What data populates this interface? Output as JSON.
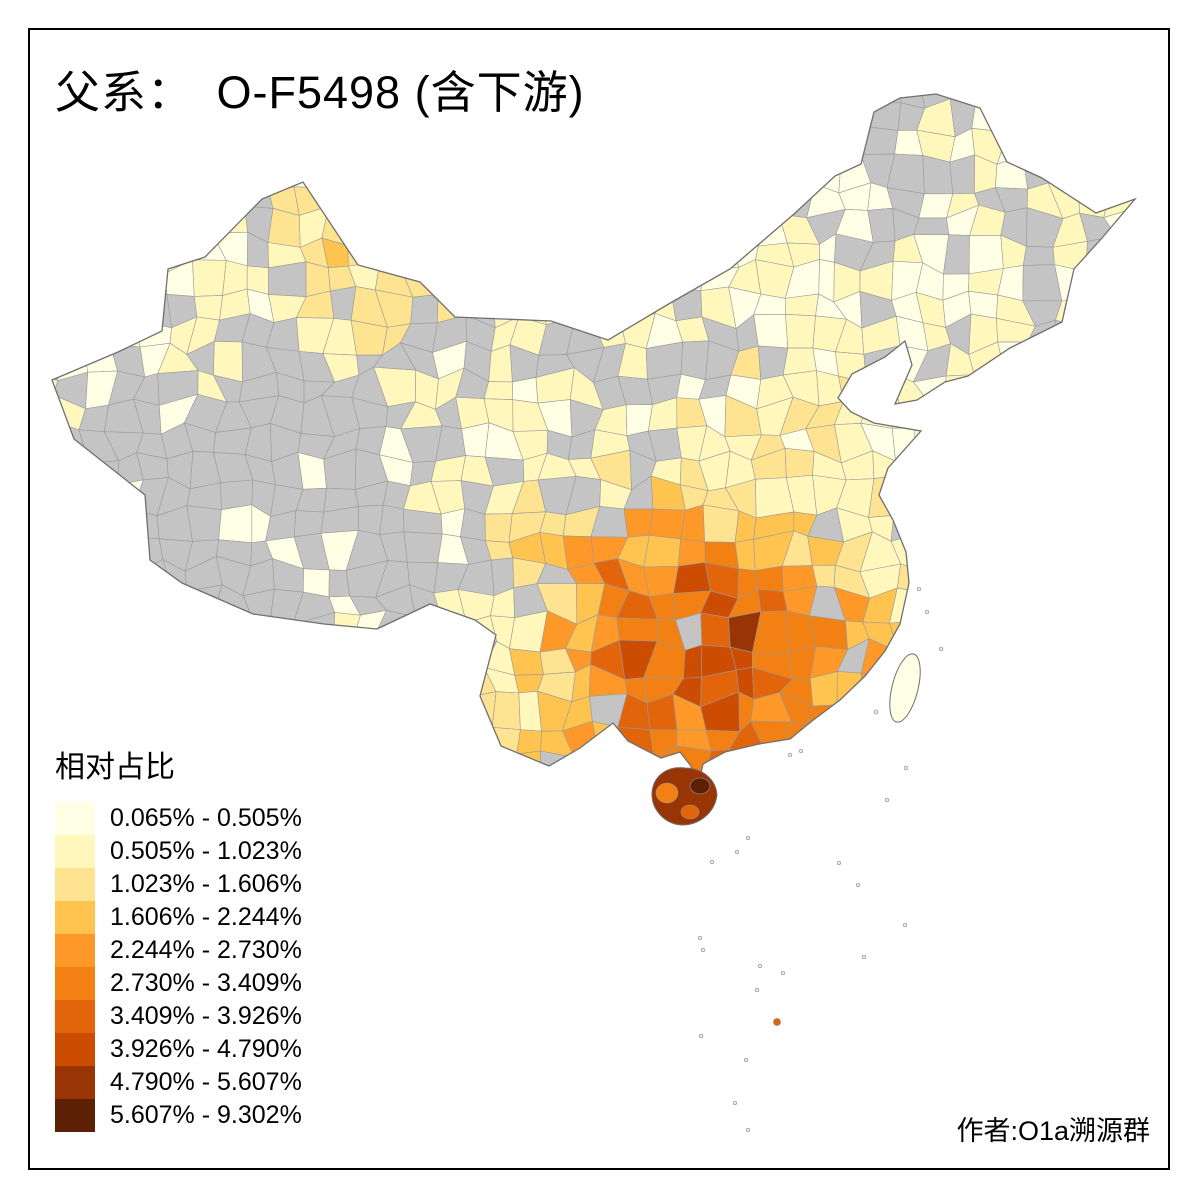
{
  "page": {
    "title": "父系：　O-F5498 (含下游)",
    "author": "作者:O1a溯源群"
  },
  "legend": {
    "title": "相对占比",
    "classes": [
      {
        "label": "0.065% - 0.505%",
        "color": "#FFFFE5"
      },
      {
        "label": "0.505% - 1.023%",
        "color": "#FFF7BC"
      },
      {
        "label": "1.023% - 1.606%",
        "color": "#FEE391"
      },
      {
        "label": "1.606% - 2.244%",
        "color": "#FEC44F"
      },
      {
        "label": "2.244% - 2.730%",
        "color": "#FE9929"
      },
      {
        "label": "2.730% - 3.409%",
        "color": "#F28013"
      },
      {
        "label": "3.409% - 3.926%",
        "color": "#E2650C"
      },
      {
        "label": "3.926% - 4.790%",
        "color": "#CC4C02"
      },
      {
        "label": "4.790% - 5.607%",
        "color": "#993404"
      },
      {
        "label": "5.607% - 9.302%",
        "color": "#5C2104"
      }
    ]
  },
  "map": {
    "no_data_color": "#C4C4C4",
    "boundary_color": "#9A9A9A",
    "outline_color": "#6F6F6F",
    "island_stroke_color": "#8A8A8A",
    "island_fill_color": "#ECECEC",
    "background": "#FFFFFF"
  }
}
